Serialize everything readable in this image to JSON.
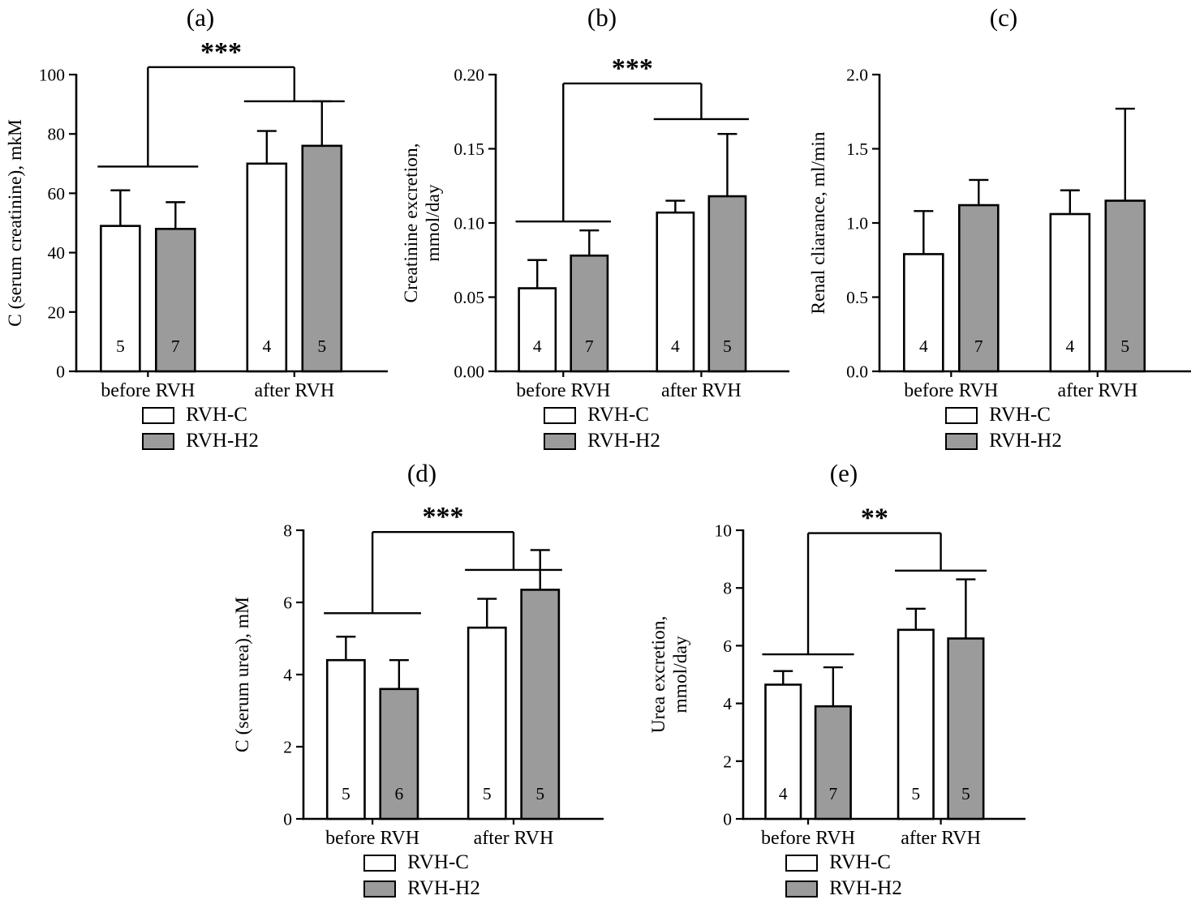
{
  "colors": {
    "bar_white": "#ffffff",
    "bar_gray": "#9b9b9b",
    "line": "#000000"
  },
  "chart_data": [
    {
      "id": "a",
      "type": "bar",
      "title": "(a)",
      "ylabel_lines": [
        "C (serum creatinine), mkM"
      ],
      "ylim": [
        0,
        100
      ],
      "ytick_values": [
        0,
        20,
        40,
        60,
        80,
        100
      ],
      "ytick_labels": [
        "0",
        "20",
        "40",
        "60",
        "80",
        "100"
      ],
      "categories": [
        "before RVH",
        "after RVH"
      ],
      "legend_position": "bottom",
      "grid": false,
      "series": [
        {
          "name": "RVH-C",
          "fill": "#ffffff",
          "values": [
            49,
            70
          ],
          "errors": [
            12,
            11
          ],
          "n": [
            5,
            4
          ]
        },
        {
          "name": "RVH-H2",
          "fill": "#9b9b9b",
          "values": [
            48,
            76
          ],
          "errors": [
            9,
            15
          ],
          "n": [
            7,
            5
          ]
        }
      ],
      "significance": {
        "label": "***",
        "group_line_y": [
          69,
          91
        ],
        "top_y": 102.5
      }
    },
    {
      "id": "b",
      "type": "bar",
      "title": "(b)",
      "ylabel_lines": [
        "Creatinine excretion,",
        "mmol/day"
      ],
      "ylim": [
        0,
        0.2
      ],
      "ytick_values": [
        0,
        0.05,
        0.1,
        0.15,
        0.2
      ],
      "ytick_labels": [
        "0.00",
        "0.05",
        "0.10",
        "0.15",
        "0.20"
      ],
      "categories": [
        "before RVH",
        "after RVH"
      ],
      "legend_position": "bottom",
      "grid": false,
      "series": [
        {
          "name": "RVH-C",
          "fill": "#ffffff",
          "values": [
            0.056,
            0.107
          ],
          "errors": [
            0.019,
            0.008
          ],
          "n": [
            4,
            4
          ]
        },
        {
          "name": "RVH-H2",
          "fill": "#9b9b9b",
          "values": [
            0.078,
            0.118
          ],
          "errors": [
            0.017,
            0.042
          ],
          "n": [
            7,
            5
          ]
        }
      ],
      "significance": {
        "label": "***",
        "group_line_y": [
          0.101,
          0.17
        ],
        "top_y": 0.194
      }
    },
    {
      "id": "c",
      "type": "bar",
      "title": "(c)",
      "ylabel_lines": [
        "Renal cliarance, ml/min"
      ],
      "ylim": [
        0,
        2.0
      ],
      "ytick_values": [
        0,
        0.5,
        1.0,
        1.5,
        2.0
      ],
      "ytick_labels": [
        "0.0",
        "0.5",
        "1.0",
        "1.5",
        "2.0"
      ],
      "categories": [
        "before RVH",
        "after RVH"
      ],
      "legend_position": "bottom",
      "grid": false,
      "series": [
        {
          "name": "RVH-C",
          "fill": "#ffffff",
          "values": [
            0.79,
            1.06
          ],
          "errors": [
            0.29,
            0.16
          ],
          "n": [
            4,
            4
          ]
        },
        {
          "name": "RVH-H2",
          "fill": "#9b9b9b",
          "values": [
            1.12,
            1.15
          ],
          "errors": [
            0.17,
            0.62
          ],
          "n": [
            7,
            5
          ]
        }
      ],
      "significance": null
    },
    {
      "id": "d",
      "type": "bar",
      "title": "(d)",
      "ylabel_lines": [
        "C (serum urea), mM"
      ],
      "ylim": [
        0,
        8
      ],
      "ytick_values": [
        0,
        2,
        4,
        6,
        8
      ],
      "ytick_labels": [
        "0",
        "2",
        "4",
        "6",
        "8"
      ],
      "categories": [
        "before RVH",
        "after RVH"
      ],
      "legend_position": "bottom",
      "grid": false,
      "series": [
        {
          "name": "RVH-C",
          "fill": "#ffffff",
          "values": [
            4.4,
            5.3
          ],
          "errors": [
            0.65,
            0.8
          ],
          "n": [
            5,
            5
          ]
        },
        {
          "name": "RVH-H2",
          "fill": "#9b9b9b",
          "values": [
            3.6,
            6.35
          ],
          "errors": [
            0.8,
            1.1
          ],
          "n": [
            6,
            5
          ]
        }
      ],
      "significance": {
        "label": "***",
        "group_line_y": [
          5.7,
          6.9
        ],
        "top_y": 7.95
      }
    },
    {
      "id": "e",
      "type": "bar",
      "title": "(e)",
      "ylabel_lines": [
        "Urea excretion,",
        "mmol/day"
      ],
      "ylim": [
        0,
        10
      ],
      "ytick_values": [
        0,
        2,
        4,
        6,
        8,
        10
      ],
      "ytick_labels": [
        "0",
        "2",
        "4",
        "6",
        "8",
        "10"
      ],
      "categories": [
        "before RVH",
        "after RVH"
      ],
      "legend_position": "bottom",
      "grid": false,
      "series": [
        {
          "name": "RVH-C",
          "fill": "#ffffff",
          "values": [
            4.65,
            6.55
          ],
          "errors": [
            0.47,
            0.73
          ],
          "n": [
            4,
            5
          ]
        },
        {
          "name": "RVH-H2",
          "fill": "#9b9b9b",
          "values": [
            3.9,
            6.25
          ],
          "errors": [
            1.35,
            2.05
          ],
          "n": [
            7,
            5
          ]
        }
      ],
      "significance": {
        "label": "**",
        "group_line_y": [
          5.7,
          8.6
        ],
        "top_y": 9.9
      }
    }
  ]
}
